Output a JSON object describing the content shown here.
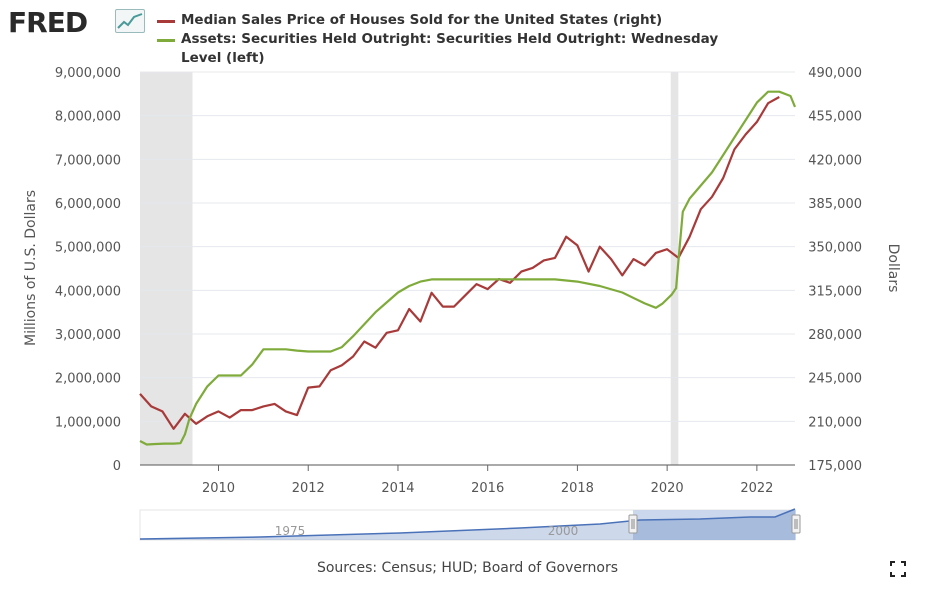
{
  "header": {
    "logo_text": "FRED",
    "legend": [
      {
        "label": "Median Sales Price of Houses Sold for the United States (right)",
        "color": "#a83a3a"
      },
      {
        "label": "Assets: Securities Held Outright: Securities Held Outright: Wednesday Level (left)",
        "color": "#7fab3a"
      }
    ]
  },
  "footer": {
    "source": "Sources: Census; HUD; Board of Governors",
    "expand_icon": "fullscreen-icon"
  },
  "navigator": {
    "tick_labels": [
      "1975",
      "2000"
    ],
    "color": "#4a72b8"
  },
  "chart_data": {
    "type": "line",
    "xlabel": "",
    "ylabel_left": "Millions of U.S. Dollars",
    "ylabel_right": "Dollars",
    "xlim": [
      2008.25,
      2022.85
    ],
    "ylim_left": [
      0,
      9000000
    ],
    "ylim_right": [
      175000,
      490000
    ],
    "x_ticks": [
      2010,
      2012,
      2014,
      2016,
      2018,
      2020,
      2022
    ],
    "y_ticks_left": [
      "0",
      "1,000,000",
      "2,000,000",
      "3,000,000",
      "4,000,000",
      "5,000,000",
      "6,000,000",
      "7,000,000",
      "8,000,000",
      "9,000,000"
    ],
    "y_ticks_left_values": [
      0,
      1000000,
      2000000,
      3000000,
      4000000,
      5000000,
      6000000,
      7000000,
      8000000,
      9000000
    ],
    "y_ticks_right": [
      "175,000",
      "210,000",
      "245,000",
      "280,000",
      "315,000",
      "350,000",
      "385,000",
      "420,000",
      "455,000",
      "490,000"
    ],
    "y_ticks_right_values": [
      175000,
      210000,
      245000,
      280000,
      315000,
      350000,
      385000,
      420000,
      455000,
      490000
    ],
    "grid": true,
    "recessions": [
      [
        2008.25,
        2009.42
      ],
      [
        2020.08,
        2020.25
      ]
    ],
    "series": [
      {
        "name": "Median Sales Price of Houses Sold for the United States (right)",
        "axis": "right",
        "color": "#a83a3a",
        "x": [
          2008.25,
          2008.5,
          2008.75,
          2009.0,
          2009.25,
          2009.5,
          2009.75,
          2010.0,
          2010.25,
          2010.5,
          2010.75,
          2011.0,
          2011.25,
          2011.5,
          2011.75,
          2012.0,
          2012.25,
          2012.5,
          2012.75,
          2013.0,
          2013.25,
          2013.5,
          2013.75,
          2014.0,
          2014.25,
          2014.5,
          2014.75,
          2015.0,
          2015.25,
          2015.5,
          2015.75,
          2016.0,
          2016.25,
          2016.5,
          2016.75,
          2017.0,
          2017.25,
          2017.5,
          2017.75,
          2018.0,
          2018.25,
          2018.5,
          2018.75,
          2019.0,
          2019.25,
          2019.5,
          2019.75,
          2020.0,
          2020.25,
          2020.5,
          2020.75,
          2021.0,
          2021.25,
          2021.5,
          2021.75,
          2022.0,
          2022.25,
          2022.5
        ],
        "values": [
          232000,
          222000,
          218000,
          204000,
          216000,
          208000,
          214000,
          218000,
          213000,
          219000,
          219000,
          222000,
          224000,
          218000,
          215000,
          237000,
          238000,
          251000,
          255000,
          262000,
          274000,
          269000,
          281000,
          283000,
          300000,
          290000,
          313000,
          302000,
          302000,
          311000,
          320000,
          316000,
          324000,
          321000,
          330000,
          333000,
          339000,
          341000,
          358000,
          351000,
          330000,
          350000,
          340000,
          327000,
          340000,
          335000,
          345000,
          348000,
          341000,
          358000,
          380000,
          390000,
          405000,
          428000,
          440000,
          450000,
          465000,
          470000
        ]
      },
      {
        "name": "Assets: Securities Held Outright: Securities Held Outright: Wednesday Level (left)",
        "axis": "left",
        "color": "#7fab3a",
        "x": [
          2008.25,
          2008.4,
          2008.6,
          2008.8,
          2009.0,
          2009.15,
          2009.25,
          2009.35,
          2009.5,
          2009.75,
          2010.0,
          2010.25,
          2010.5,
          2010.75,
          2011.0,
          2011.25,
          2011.5,
          2011.75,
          2012.0,
          2012.5,
          2012.75,
          2013.0,
          2013.5,
          2014.0,
          2014.25,
          2014.5,
          2014.75,
          2015.0,
          2016.0,
          2017.0,
          2017.5,
          2018.0,
          2018.5,
          2019.0,
          2019.5,
          2019.75,
          2019.9,
          2020.1,
          2020.2,
          2020.27,
          2020.35,
          2020.5,
          2020.75,
          2021.0,
          2021.25,
          2021.5,
          2021.75,
          2022.0,
          2022.25,
          2022.5,
          2022.75,
          2022.85
        ],
        "values": [
          550000,
          470000,
          480000,
          490000,
          490000,
          500000,
          700000,
          1050000,
          1400000,
          1800000,
          2050000,
          2050000,
          2050000,
          2300000,
          2650000,
          2650000,
          2650000,
          2620000,
          2600000,
          2600000,
          2700000,
          2950000,
          3500000,
          3950000,
          4100000,
          4200000,
          4250000,
          4250000,
          4250000,
          4250000,
          4250000,
          4200000,
          4100000,
          3950000,
          3700000,
          3600000,
          3700000,
          3900000,
          4050000,
          4900000,
          5800000,
          6100000,
          6400000,
          6700000,
          7100000,
          7500000,
          7900000,
          8300000,
          8550000,
          8550000,
          8450000,
          8200000
        ]
      }
    ]
  }
}
